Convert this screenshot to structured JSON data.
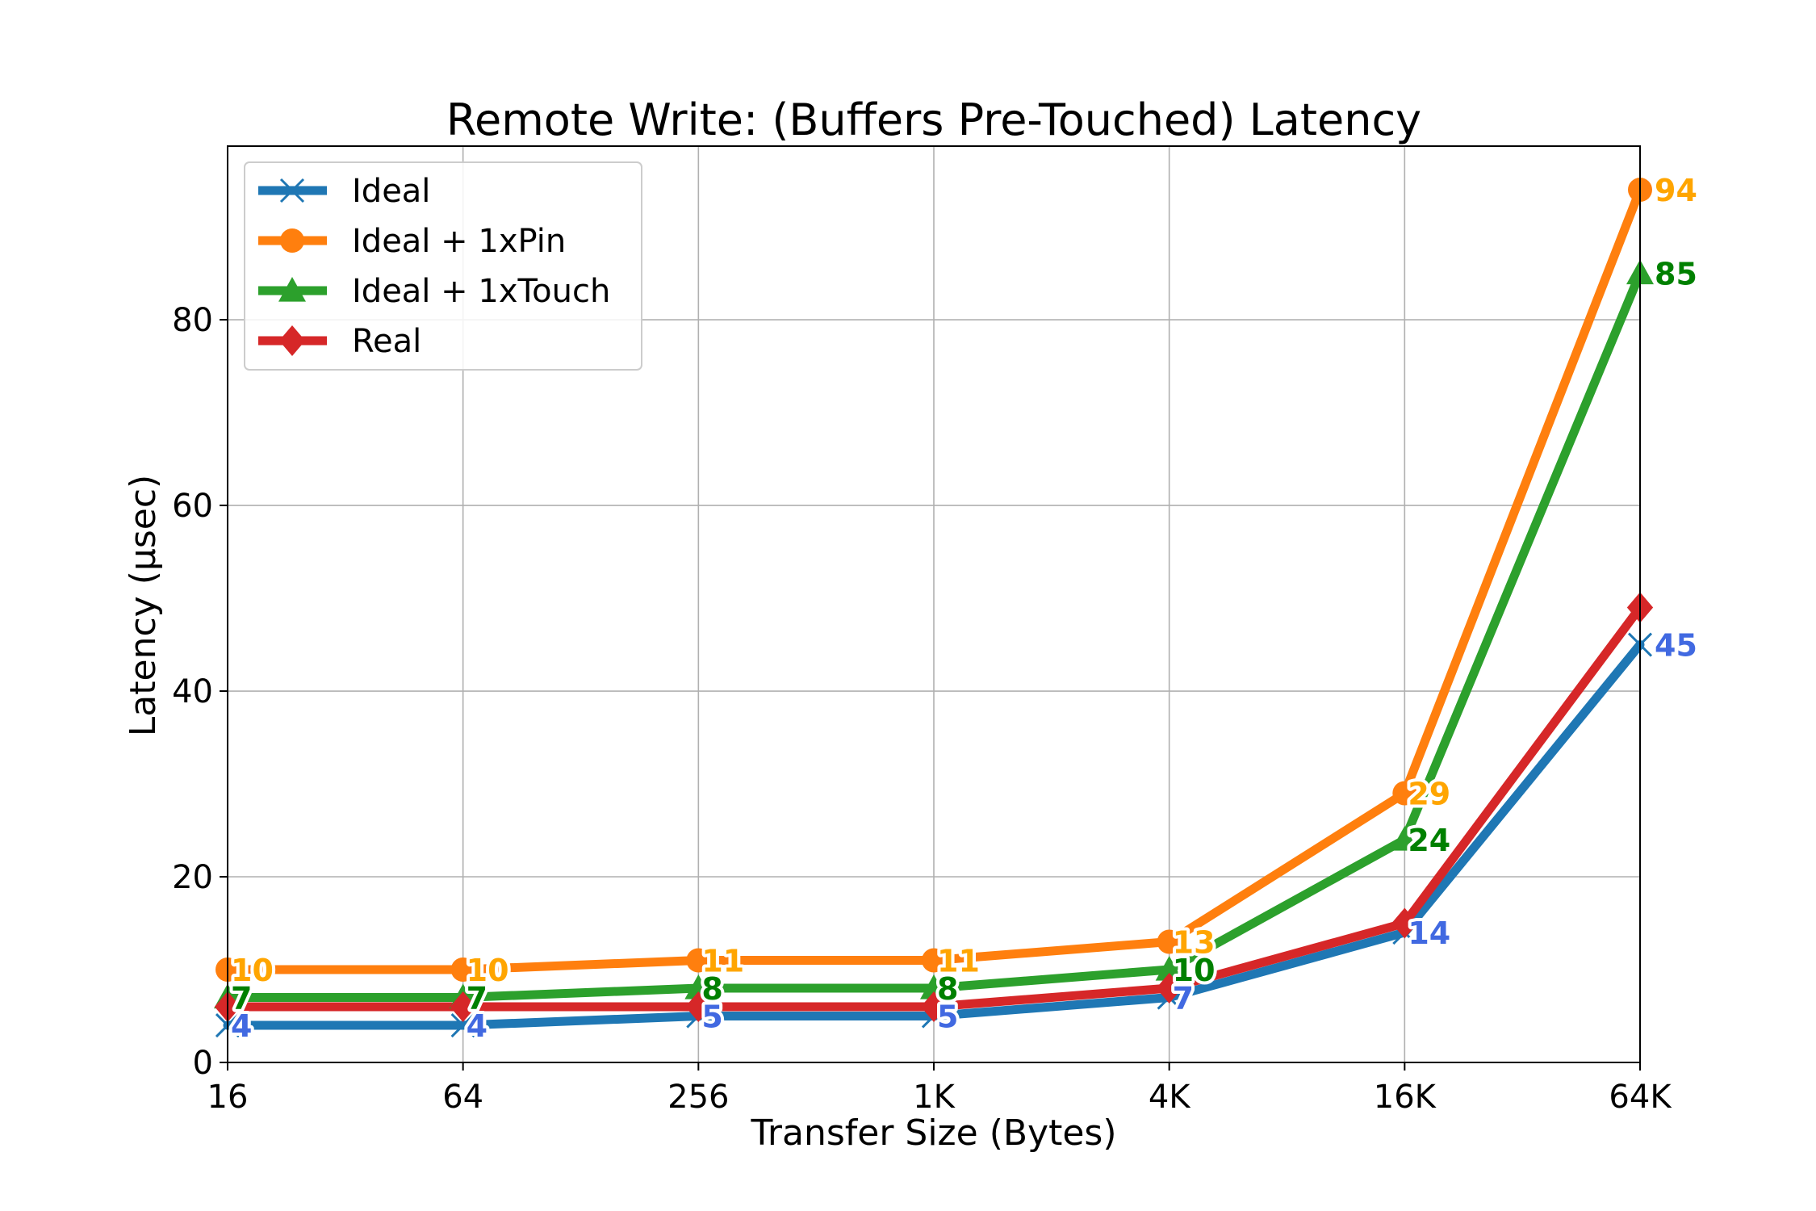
{
  "chart_data": {
    "type": "line",
    "title": "Remote Write: (Buffers Pre-Touched) Latency",
    "xlabel": "Transfer Size (Bytes)",
    "ylabel": "Latency (µsec)",
    "categories": [
      "16",
      "64",
      "256",
      "1K",
      "4K",
      "16K",
      "64K"
    ],
    "ylim": [
      0,
      98.7
    ],
    "yticks": [
      0,
      20,
      40,
      60,
      80
    ],
    "grid": true,
    "legend_position": "top-left",
    "series": [
      {
        "name": "Ideal",
        "values": [
          4,
          4,
          5,
          5,
          7,
          14,
          45
        ],
        "color": "#1f77b4",
        "marker": "x",
        "label_color": "#4169e1",
        "labels": [
          "4",
          "4",
          "5",
          "5",
          "7",
          "14",
          "45"
        ]
      },
      {
        "name": "Ideal + 1xPin",
        "values": [
          10,
          10,
          11,
          11,
          13,
          29,
          94
        ],
        "color": "#ff7f0e",
        "marker": "circle",
        "label_color": "#ffa500",
        "labels": [
          "10",
          "10",
          "11",
          "11",
          "13",
          "29",
          "94"
        ]
      },
      {
        "name": "Ideal + 1xTouch",
        "values": [
          7,
          7,
          8,
          8,
          10,
          24,
          85
        ],
        "color": "#2ca02c",
        "marker": "triangle",
        "label_color": "#008000",
        "labels": [
          "7",
          "7",
          "8",
          "8",
          "10",
          "24",
          "85"
        ]
      },
      {
        "name": "Real",
        "values": [
          6,
          6,
          6,
          6,
          8,
          15,
          49
        ],
        "color": "#d62728",
        "marker": "diamond",
        "label_color": "#d62728",
        "labels": []
      }
    ]
  }
}
